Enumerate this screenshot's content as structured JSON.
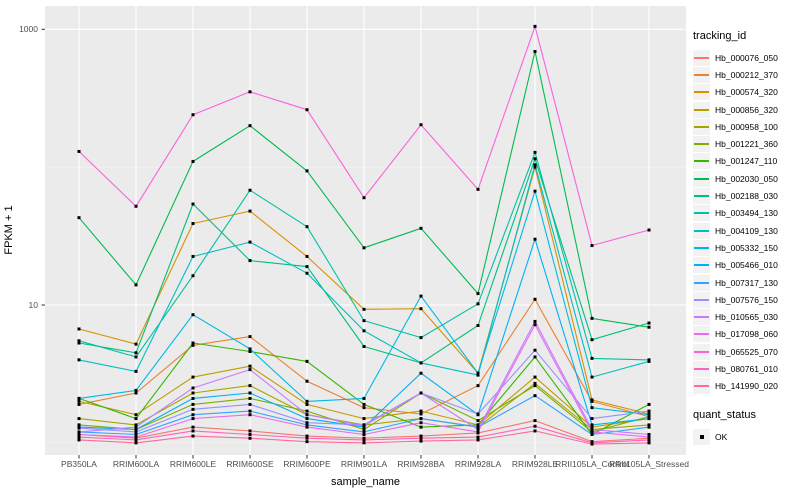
{
  "figure_name": "FPKM expression line plot",
  "axes": {
    "x_title": "sample_name",
    "y_title": "FPKM + 1"
  },
  "legend": {
    "tracking_title": "tracking_id",
    "quant_title": "quant_status",
    "quant_items": [
      {
        "label": "OK"
      }
    ]
  },
  "colors": {
    "panel_bg": "#ebebeb",
    "grid_major": "#ffffff",
    "grid_minor": "#f7f7f7",
    "tick_mark": "#333333",
    "tick_text": "#4d4d4d",
    "point": "#000000",
    "legend_key_bg": "#f2f2f2"
  },
  "chart_data": {
    "type": "line",
    "title": "",
    "xlabel": "sample_name",
    "ylabel": "FPKM + 1",
    "y_scale": "log10",
    "y_major_breaks": [
      10,
      1000
    ],
    "y_minor_breaks": [
      1,
      100
    ],
    "ylim": [
      0.85,
      1500
    ],
    "grid": true,
    "legend_position": "right",
    "point_shape": "filled-black-square",
    "categories": [
      "PB350LA",
      "RRIM600LA",
      "RRIM600LE",
      "RRIM600SE",
      "RRIM600PE",
      "RRIM901LA",
      "RRIM928BA",
      "RRIM928LA",
      "RRIM928LE",
      "RRII105LA_Control",
      "RRII105LA_Stressed"
    ],
    "series": [
      {
        "name": "Hb_000076_050",
        "color": "#F8766D",
        "values": [
          1.15,
          1.08,
          1.3,
          1.22,
          1.12,
          1.08,
          1.12,
          1.18,
          1.45,
          1.02,
          1.08
        ]
      },
      {
        "name": "Hb_000212_370",
        "color": "#EA8331",
        "values": [
          1.9,
          2.3,
          5.1,
          5.9,
          2.8,
          1.8,
          1.62,
          2.6,
          11,
          2.0,
          1.55
        ]
      },
      {
        "name": "Hb_000574_320",
        "color": "#D89000",
        "values": [
          6.7,
          5.2,
          39,
          48,
          22.5,
          9.3,
          9.4,
          3.2,
          100,
          2.05,
          1.62
        ]
      },
      {
        "name": "Hb_000856_320",
        "color": "#C09B00",
        "values": [
          2.0,
          1.6,
          3.0,
          3.6,
          1.9,
          1.5,
          1.7,
          1.35,
          3.0,
          1.3,
          1.5
        ]
      },
      {
        "name": "Hb_000958_100",
        "color": "#A3A500",
        "values": [
          1.5,
          1.35,
          2.3,
          2.6,
          1.6,
          1.35,
          1.5,
          1.3,
          2.7,
          1.25,
          1.35
        ]
      },
      {
        "name": "Hb_001221_360",
        "color": "#7CAE00",
        "values": [
          1.35,
          1.25,
          1.9,
          2.1,
          1.7,
          1.25,
          2.3,
          1.45,
          2.6,
          1.2,
          1.55
        ]
      },
      {
        "name": "Hb_001247_110",
        "color": "#39B600",
        "values": [
          2.1,
          1.5,
          5.3,
          4.6,
          3.9,
          1.9,
          1.3,
          1.35,
          4.2,
          1.15,
          1.9
        ]
      },
      {
        "name": "Hb_002030_050",
        "color": "#00BB4E",
        "values": [
          43,
          14,
          110,
          200,
          94,
          26,
          36,
          12.1,
          690,
          8.0,
          6.9
        ]
      },
      {
        "name": "Hb_002188_030",
        "color": "#00BF7D",
        "values": [
          5.3,
          4.5,
          54,
          21,
          19,
          5.0,
          3.8,
          7.1,
          115,
          5.6,
          7.4
        ]
      },
      {
        "name": "Hb_003494_130",
        "color": "#00C1A3",
        "values": [
          5.5,
          4.2,
          16.3,
          68,
          37,
          7.7,
          5.8,
          10.2,
          128,
          4.1,
          4.0
        ]
      },
      {
        "name": "Hb_004109_130",
        "color": "#00BFC4",
        "values": [
          4.0,
          3.3,
          22.5,
          28.6,
          17,
          6.5,
          3.8,
          3.1,
          104,
          3.0,
          3.9
        ]
      },
      {
        "name": "Hb_005332_150",
        "color": "#00BAE0",
        "values": [
          2.1,
          2.4,
          8.5,
          4.8,
          2.0,
          2.1,
          11.6,
          3.2,
          67,
          1.8,
          1.6
        ]
      },
      {
        "name": "Hb_005466_010",
        "color": "#00B0F6",
        "values": [
          1.3,
          1.25,
          2.1,
          2.3,
          1.5,
          1.3,
          3.2,
          1.6,
          30,
          1.35,
          1.5
        ]
      },
      {
        "name": "Hb_007317_130",
        "color": "#35A2FF",
        "values": [
          1.2,
          1.15,
          1.6,
          1.7,
          1.35,
          1.2,
          1.5,
          1.3,
          2.2,
          1.15,
          1.3
        ]
      },
      {
        "name": "Hb_007576_150",
        "color": "#9590FF",
        "values": [
          1.28,
          1.2,
          1.75,
          1.9,
          1.4,
          1.35,
          2.3,
          1.62,
          4.7,
          1.5,
          1.7
        ]
      },
      {
        "name": "Hb_010565_030",
        "color": "#C77CFF",
        "values": [
          1.2,
          1.3,
          2.5,
          3.4,
          1.6,
          1.33,
          2.3,
          1.25,
          7.6,
          1.25,
          1.15
        ]
      },
      {
        "name": "Hb_017098_060",
        "color": "#E76BF3",
        "values": [
          1.15,
          1.1,
          1.5,
          1.6,
          1.3,
          1.15,
          1.4,
          1.2,
          7.2,
          1.2,
          1.1
        ]
      },
      {
        "name": "Hb_065525_070",
        "color": "#FA62DB",
        "values": [
          130,
          52,
          240,
          352,
          261,
          60,
          203,
          69,
          1050,
          27,
          35
        ]
      },
      {
        "name": "Hb_080761_010",
        "color": "#FF62BC",
        "values": [
          1.1,
          1.05,
          1.22,
          1.15,
          1.08,
          1.05,
          1.08,
          1.1,
          1.32,
          1.0,
          1.05
        ]
      },
      {
        "name": "Hb_141990_020",
        "color": "#FF6A98",
        "values": [
          1.05,
          1.0,
          1.12,
          1.08,
          1.02,
          1.0,
          1.03,
          1.05,
          1.22,
          0.98,
          1.0
        ]
      }
    ]
  }
}
